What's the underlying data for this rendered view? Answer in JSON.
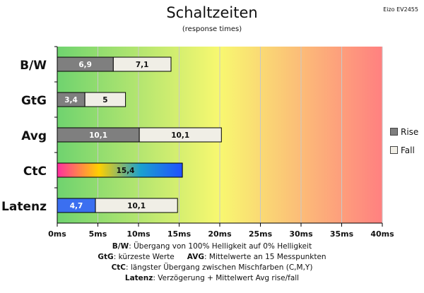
{
  "header": {
    "title": "Schaltzeiten",
    "subtitle": "(response times)",
    "model": "Eizo EV2455"
  },
  "colors": {
    "rise": "#7f7f7f",
    "fall": "#f0eee6",
    "bar_outline": "#000000",
    "grid": "#c8c8c8",
    "background_gradient": [
      "#6fd36f",
      "#f8f870",
      "#ff8080"
    ],
    "ctc_gradient": [
      "#ff2fa0",
      "#ffd000",
      "#1aa0d0",
      "#2050ff"
    ],
    "latenz_rise": "#3b6ff0"
  },
  "legend": {
    "rise_label": "Rise",
    "fall_label": "Fall"
  },
  "footnotes": {
    "line1": {
      "key": "B/W",
      "text": ":  Übergang von 100% Helligkeit auf 0% Helligkeit"
    },
    "line2a": {
      "key": "GtG",
      "text": ": kürzeste  Werte"
    },
    "line2b": {
      "key": "AVG",
      "text": ":  Mittelwerte  an 15 Messpunkten"
    },
    "line3": {
      "key": "CtC",
      "text": ": längster Übergang  zwischen Mischfarben (C,M,Y)"
    },
    "line4": {
      "key": "Latenz",
      "text": ": Verzögerung  + Mittelwert Avg rise/fall"
    }
  },
  "chart_data": {
    "type": "bar",
    "orientation": "horizontal",
    "stacked": true,
    "categories": [
      "B/W",
      "GtG",
      "Avg",
      "CtC",
      "Latenz"
    ],
    "series": [
      {
        "name": "Rise",
        "values": [
          6.9,
          3.4,
          10.1,
          15.4,
          4.7
        ]
      },
      {
        "name": "Fall",
        "values": [
          7.1,
          5,
          10.1,
          null,
          10.1
        ]
      }
    ],
    "data_labels": {
      "Rise": [
        "6,9",
        "3,4",
        "10,1",
        "15,4",
        "4,7"
      ],
      "Fall": [
        "7,1",
        "5",
        "10,1",
        "",
        "10,1"
      ]
    },
    "xlim": [
      0,
      40
    ],
    "xticks": [
      "0ms",
      "5ms",
      "10ms",
      "15ms",
      "20ms",
      "25ms",
      "30ms",
      "35ms",
      "40ms"
    ],
    "xtick_values": [
      0,
      5,
      10,
      15,
      20,
      25,
      30,
      35,
      40
    ],
    "grid": true,
    "legend_position": "right"
  }
}
